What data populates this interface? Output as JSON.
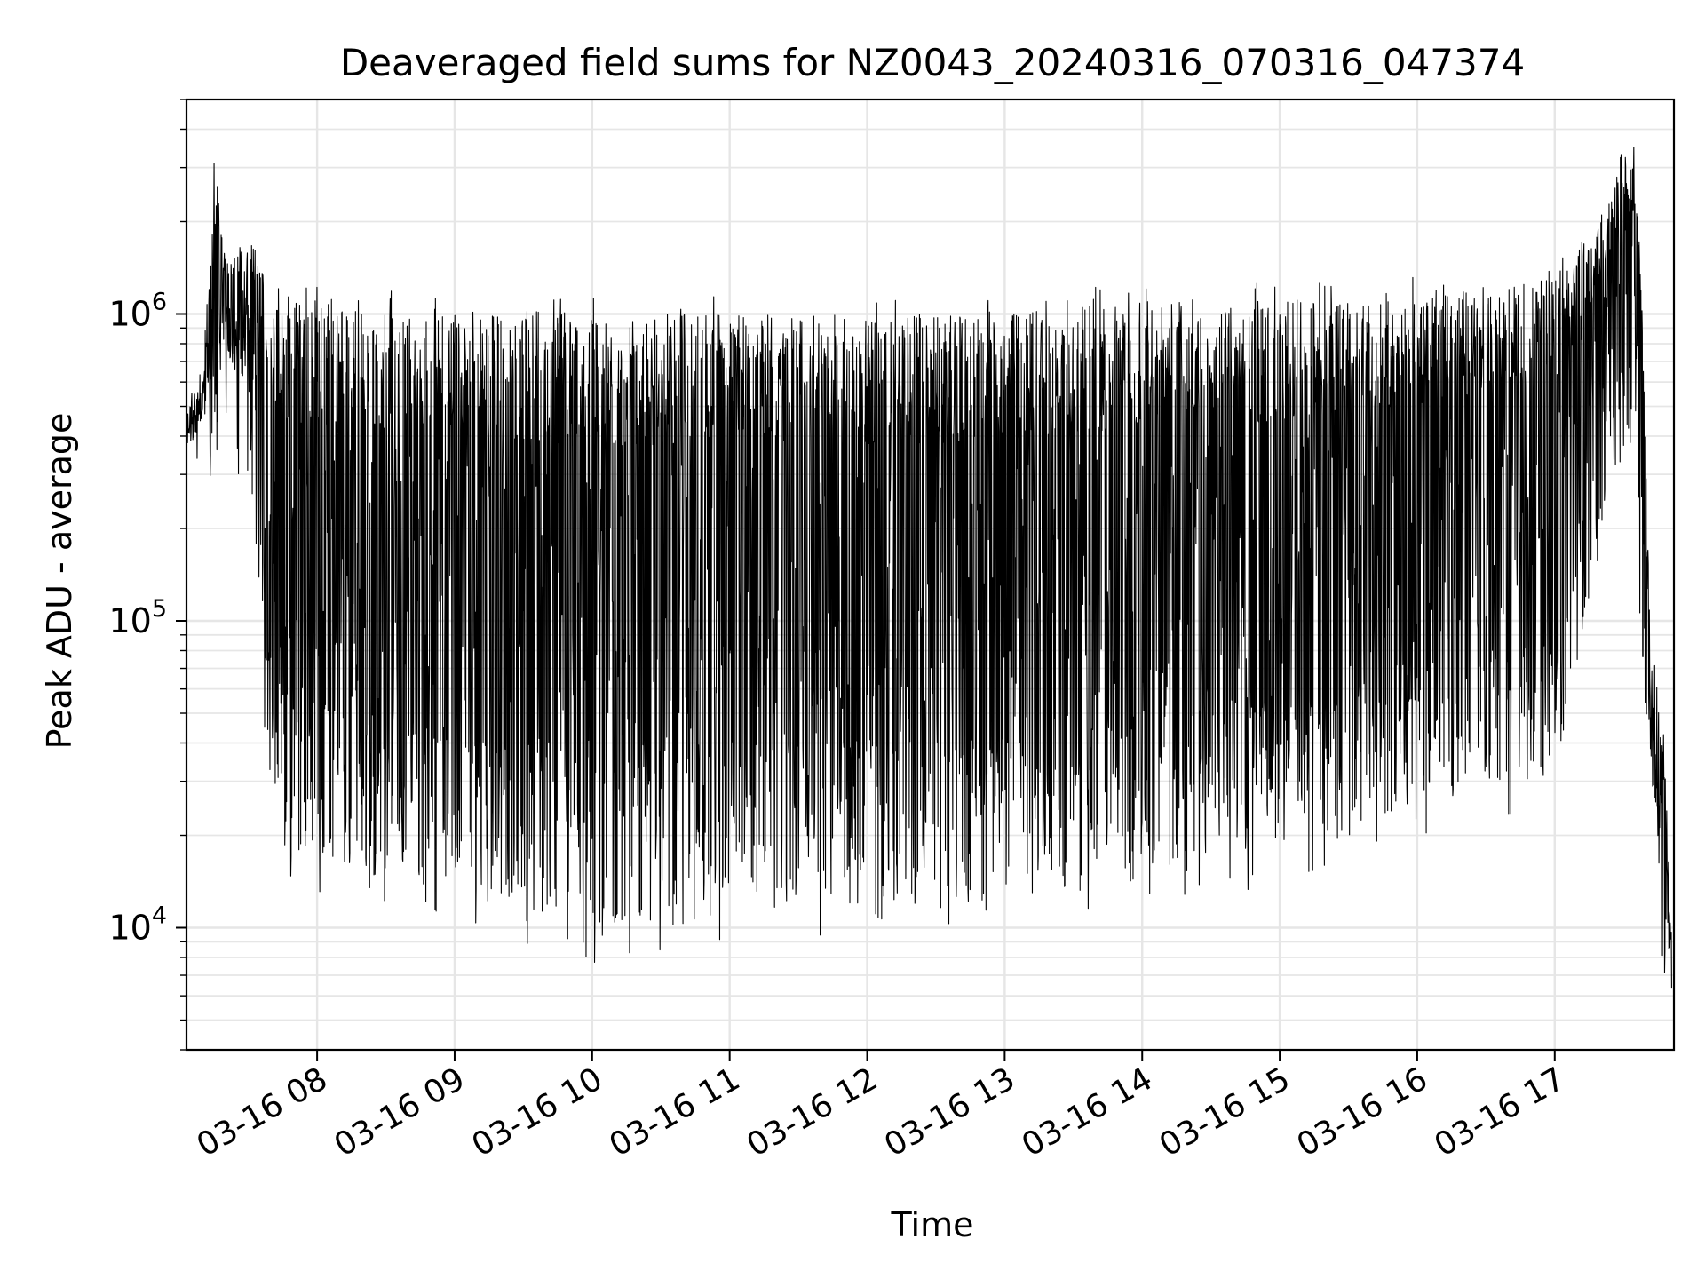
{
  "chart_data": {
    "type": "line",
    "title": "Deaveraged field sums for NZ0043_20240316_070316_047374",
    "xlabel": "Time",
    "ylabel": "Peak ADU - average",
    "yscale": "log",
    "ylim": [
      4000,
      5000000
    ],
    "xlim": [
      "2024-03-16 07:03",
      "2024-03-16 17:52"
    ],
    "x_ticks": [
      "03-16 08",
      "03-16 09",
      "03-16 10",
      "03-16 11",
      "03-16 12",
      "03-16 13",
      "03-16 14",
      "03-16 15",
      "03-16 16",
      "03-16 17"
    ],
    "y_ticks": [
      {
        "base": "10",
        "exp": "4"
      },
      {
        "base": "10",
        "exp": "5"
      },
      {
        "base": "10",
        "exp": "6"
      }
    ],
    "grid": true,
    "line_color": "#000000",
    "series": [
      {
        "name": "",
        "x": [
          "2024-03-16 07:03",
          "2024-03-16 07:10",
          "2024-03-16 07:15",
          "2024-03-16 07:20",
          "2024-03-16 07:25",
          "2024-03-16 07:30",
          "2024-03-16 07:35",
          "2024-03-16 07:38",
          "2024-03-16 07:45",
          "2024-03-16 08:00",
          "2024-03-16 09:00",
          "2024-03-16 10:00",
          "2024-03-16 11:00",
          "2024-03-16 12:00",
          "2024-03-16 13:00",
          "2024-03-16 14:00",
          "2024-03-16 15:00",
          "2024-03-16 16:00",
          "2024-03-16 17:00",
          "2024-03-16 17:25",
          "2024-03-16 17:30",
          "2024-03-16 17:35",
          "2024-03-16 17:38",
          "2024-03-16 17:42",
          "2024-03-16 17:45",
          "2024-03-16 17:48",
          "2024-03-16 17:51"
        ],
        "max_envelope": [
          500000,
          600000,
          3300000,
          1500000,
          1700000,
          1800000,
          1500000,
          1200000,
          1100000,
          1100000,
          1050000,
          1000000,
          1000000,
          1000000,
          1000000,
          1100000,
          1100000,
          1200000,
          1300000,
          2500000,
          3800000,
          3000000,
          1200000,
          90000,
          60000,
          40000,
          9000
        ],
        "min_envelope": [
          300000,
          400000,
          220000,
          600000,
          400000,
          350000,
          110000,
          30000,
          17000,
          17000,
          13000,
          10000,
          12000,
          12000,
          12000,
          16000,
          18000,
          25000,
          30000,
          300000,
          300000,
          500000,
          80000,
          20000,
          10000,
          6000,
          5000
        ]
      }
    ]
  }
}
